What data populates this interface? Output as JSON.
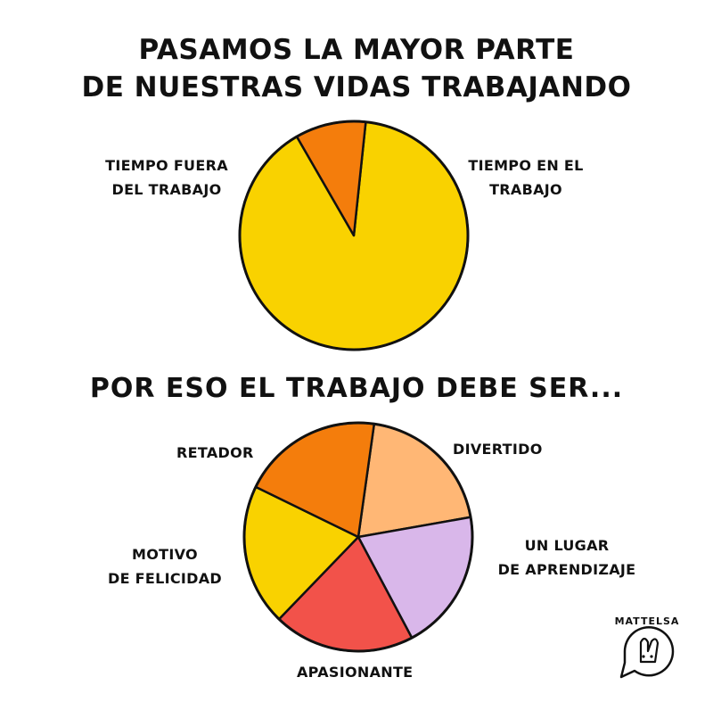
{
  "title_lines": [
    "PASAMOS LA MAYOR PARTE",
    "DE NUESTRAS VIDAS TRABAJANDO"
  ],
  "subtitle": "POR ESO EL TRABAJO DEBE SER...",
  "logo": {
    "text": "MATTELSA",
    "icon": "rabbit-speech-bubble-icon"
  },
  "colors": {
    "yellow": "#F9D200",
    "orange": "#F47D0C",
    "peach": "#FFB775",
    "lavender": "#D9B7EA",
    "red": "#F2524A",
    "outline": "#111111"
  },
  "chart_data": [
    {
      "type": "pie",
      "title": "PASAMOS LA MAYOR PARTE DE NUESTRAS VIDAS TRABAJANDO",
      "slices": [
        {
          "label": "TIEMPO EN EL\nTRABAJO",
          "value": 90,
          "color": "#F9D200"
        },
        {
          "label": "TIEMPO FUERA\nDEL TRABAJO",
          "value": 10,
          "color": "#F47D0C"
        }
      ]
    },
    {
      "type": "pie",
      "title": "POR ESO EL TRABAJO DEBE SER...",
      "slices": [
        {
          "label": "DIVERTIDO",
          "value": 20,
          "color": "#FFB775"
        },
        {
          "label": "UN LUGAR\nDE APRENDIZAJE",
          "value": 20,
          "color": "#D9B7EA"
        },
        {
          "label": "APASIONANTE",
          "value": 20,
          "color": "#F2524A"
        },
        {
          "label": "MOTIVO\nDE FELICIDAD",
          "value": 20,
          "color": "#F9D200"
        },
        {
          "label": "RETADOR",
          "value": 20,
          "color": "#F47D0C"
        }
      ]
    }
  ]
}
